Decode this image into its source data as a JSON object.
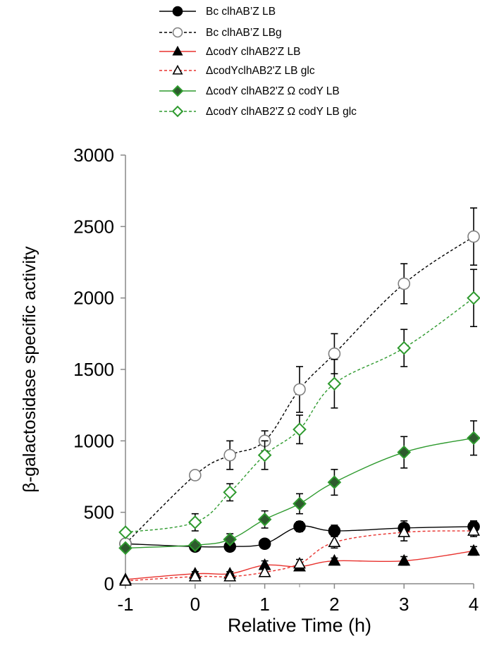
{
  "chart_data": {
    "type": "line",
    "xlabel": "Relative Time (h)",
    "ylabel": "β-galactosidase specific activity",
    "xlim": [
      -1,
      4
    ],
    "ylim": [
      0,
      3000
    ],
    "x_ticks": [
      "-1",
      "0",
      "1",
      "2",
      "3",
      "4"
    ],
    "y_ticks": [
      "0",
      "500",
      "1000",
      "1500",
      "2000",
      "2500",
      "3000"
    ],
    "grid": false,
    "legend_position": "top",
    "x": [
      -1,
      0,
      0.5,
      1,
      1.5,
      2,
      3,
      4
    ],
    "series": [
      {
        "name": "Bc clhAB’Z LB",
        "color": "#000000",
        "line": "solid",
        "marker": "circle",
        "filled": true,
        "values": [
          280,
          260,
          260,
          280,
          400,
          370,
          390,
          400
        ],
        "errors": [
          0,
          20,
          20,
          20,
          35,
          40,
          50,
          40
        ]
      },
      {
        "name": "Bc clhAB’Z LBg",
        "color": "#000000",
        "line": "dashed",
        "marker": "circle",
        "filled": false,
        "values": [
          280,
          760,
          900,
          1000,
          1360,
          1610,
          2100,
          2430
        ],
        "errors": [
          0,
          30,
          100,
          70,
          160,
          140,
          140,
          200
        ]
      },
      {
        "name": "ΔcodY clhAB2'Z  LB",
        "color": "#e8322e",
        "line": "solid",
        "marker": "triangle",
        "filled": true,
        "values": [
          30,
          70,
          70,
          130,
          120,
          160,
          160,
          230
        ],
        "errors": [
          0,
          15,
          15,
          30,
          20,
          20,
          30,
          30
        ]
      },
      {
        "name": "ΔcodYclhAB2'Z  LB glc",
        "color": "#e8322e",
        "line": "dashed",
        "marker": "triangle",
        "filled": false,
        "values": [
          20,
          50,
          50,
          80,
          140,
          290,
          360,
          370
        ],
        "errors": [
          0,
          15,
          15,
          20,
          30,
          40,
          60,
          40
        ]
      },
      {
        "name": "ΔcodY clhAB2'Z Ω codY LB",
        "color": "#2e9a2e",
        "line": "solid",
        "marker": "diamond",
        "filled": true,
        "values": [
          250,
          270,
          310,
          450,
          560,
          710,
          920,
          1020
        ],
        "errors": [
          0,
          20,
          40,
          60,
          70,
          90,
          110,
          120
        ]
      },
      {
        "name": "ΔcodY clhAB2'Z Ω codY LB glc",
        "color": "#2e9a2e",
        "line": "dashed",
        "marker": "diamond",
        "filled": false,
        "values": [
          360,
          430,
          640,
          900,
          1080,
          1400,
          1650,
          2000
        ],
        "errors": [
          0,
          60,
          60,
          100,
          100,
          170,
          130,
          200
        ]
      }
    ]
  }
}
